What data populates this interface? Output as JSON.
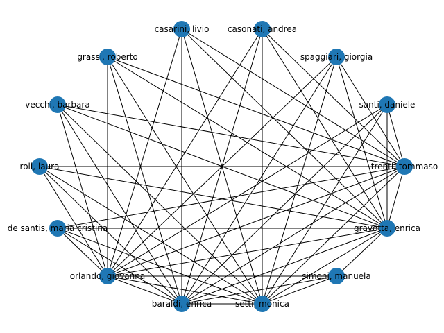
{
  "graph": {
    "node_color": "#1f77b4",
    "edge_color": "#000000",
    "nodes": [
      {
        "id": "casarini",
        "label": "casarini, livio"
      },
      {
        "id": "casonati",
        "label": "casonati, andrea"
      },
      {
        "id": "grassi",
        "label": "grassi, roberto"
      },
      {
        "id": "spaggiari",
        "label": "spaggiari, giorgia"
      },
      {
        "id": "vecchi",
        "label": "vecchi, barbara"
      },
      {
        "id": "santi",
        "label": "santi, daniele"
      },
      {
        "id": "roli",
        "label": "roli, laura"
      },
      {
        "id": "trenti",
        "label": "trenti, tommaso"
      },
      {
        "id": "desantis",
        "label": "de santis, maria cristina"
      },
      {
        "id": "gravotta",
        "label": "gravotta, enrica"
      },
      {
        "id": "orlando",
        "label": "orlando, giovanna"
      },
      {
        "id": "simoni",
        "label": "simoni, manuela"
      },
      {
        "id": "baraldi",
        "label": "baraldi, enrica"
      },
      {
        "id": "setti",
        "label": "setti, monica"
      }
    ],
    "edges": [
      [
        "casarini",
        "baraldi"
      ],
      [
        "casarini",
        "setti"
      ],
      [
        "casarini",
        "trenti"
      ],
      [
        "casarini",
        "gravotta"
      ],
      [
        "casarini",
        "orlando"
      ],
      [
        "casonati",
        "baraldi"
      ],
      [
        "casonati",
        "setti"
      ],
      [
        "casonati",
        "trenti"
      ],
      [
        "casonati",
        "gravotta"
      ],
      [
        "casonati",
        "orlando"
      ],
      [
        "grassi",
        "orlando"
      ],
      [
        "grassi",
        "baraldi"
      ],
      [
        "grassi",
        "setti"
      ],
      [
        "grassi",
        "trenti"
      ],
      [
        "grassi",
        "gravotta"
      ],
      [
        "spaggiari",
        "orlando"
      ],
      [
        "spaggiari",
        "baraldi"
      ],
      [
        "spaggiari",
        "setti"
      ],
      [
        "spaggiari",
        "trenti"
      ],
      [
        "spaggiari",
        "gravotta"
      ],
      [
        "vecchi",
        "orlando"
      ],
      [
        "vecchi",
        "baraldi"
      ],
      [
        "vecchi",
        "setti"
      ],
      [
        "vecchi",
        "trenti"
      ],
      [
        "vecchi",
        "gravotta"
      ],
      [
        "santi",
        "orlando"
      ],
      [
        "santi",
        "baraldi"
      ],
      [
        "santi",
        "setti"
      ],
      [
        "santi",
        "trenti"
      ],
      [
        "santi",
        "gravotta"
      ],
      [
        "roli",
        "orlando"
      ],
      [
        "roli",
        "baraldi"
      ],
      [
        "roli",
        "setti"
      ],
      [
        "roli",
        "trenti"
      ],
      [
        "roli",
        "gravotta"
      ],
      [
        "desantis",
        "orlando"
      ],
      [
        "desantis",
        "baraldi"
      ],
      [
        "desantis",
        "setti"
      ],
      [
        "desantis",
        "trenti"
      ],
      [
        "desantis",
        "gravotta"
      ],
      [
        "trenti",
        "orlando"
      ],
      [
        "trenti",
        "baraldi"
      ],
      [
        "trenti",
        "setti"
      ],
      [
        "trenti",
        "gravotta"
      ],
      [
        "gravotta",
        "orlando"
      ],
      [
        "gravotta",
        "baraldi"
      ],
      [
        "gravotta",
        "setti"
      ],
      [
        "simoni",
        "orlando"
      ],
      [
        "simoni",
        "baraldi"
      ],
      [
        "simoni",
        "setti"
      ],
      [
        "simoni",
        "gravotta"
      ],
      [
        "orlando",
        "baraldi"
      ],
      [
        "orlando",
        "setti"
      ],
      [
        "baraldi",
        "setti"
      ]
    ]
  }
}
